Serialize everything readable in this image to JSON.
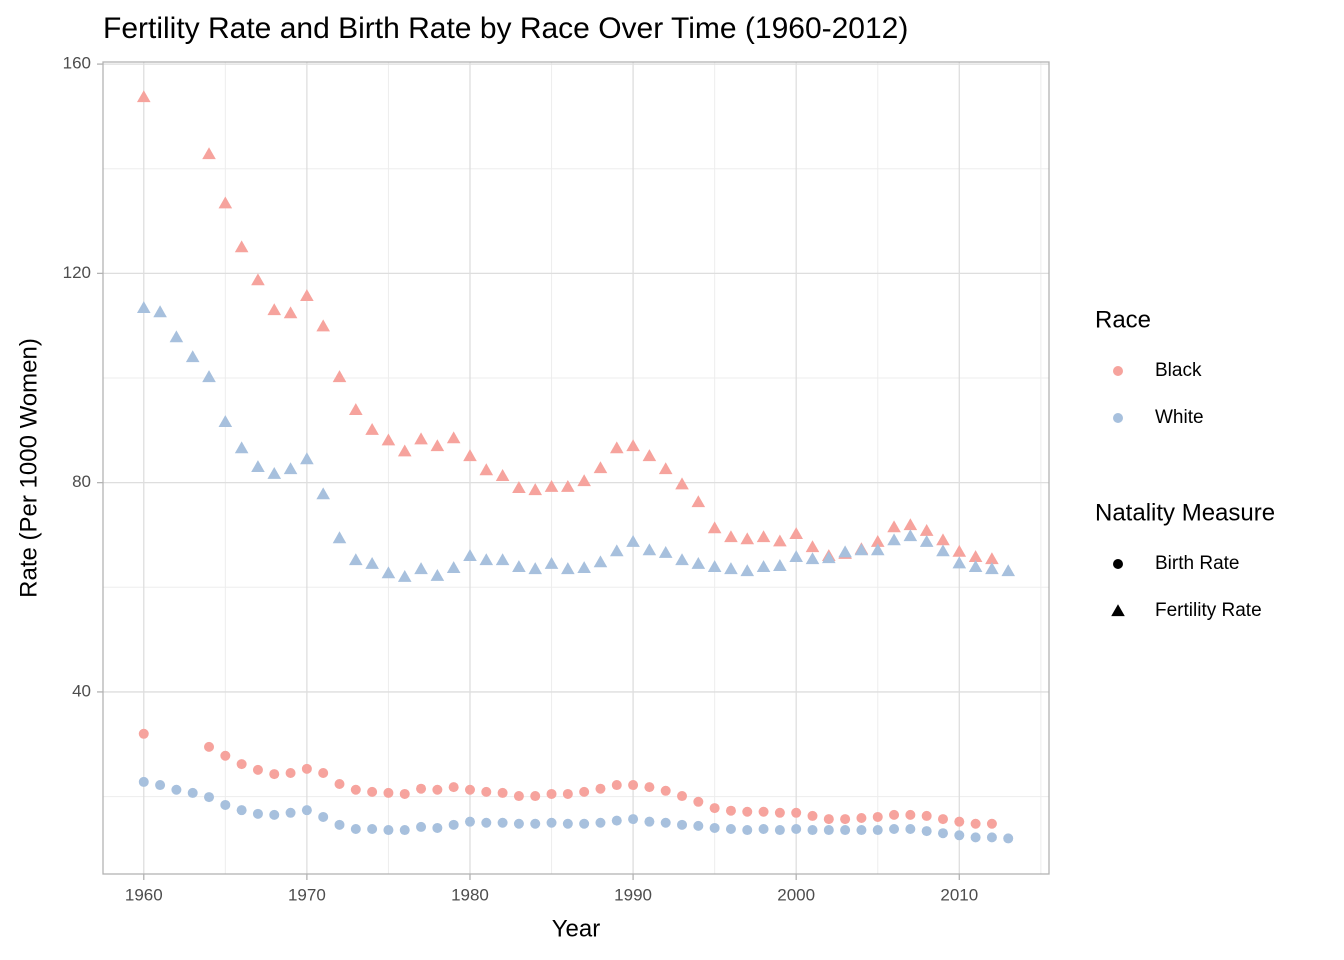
{
  "chart_data": {
    "type": "scatter",
    "title": "Fertility Rate and Birth Rate by Race Over Time (1960-2012)",
    "x_label": "Year",
    "y_label": "Rate (Per 1000 Women)",
    "xlim": [
      1957.5,
      2015.5
    ],
    "ylim": [
      5.2,
      160.4
    ],
    "xticks": [
      1960,
      1970,
      1980,
      1990,
      2000,
      2010
    ],
    "yticks": [
      40,
      80,
      120,
      160
    ],
    "grid": true,
    "legend_position": "right",
    "legends": [
      {
        "title": "Race",
        "items": [
          {
            "label": "Black",
            "color": "#f6a39d"
          },
          {
            "label": "White",
            "color": "#a7c0dd"
          }
        ]
      },
      {
        "title": "Natality Measure",
        "items": [
          {
            "label": "Birth Rate",
            "shape": "circle"
          },
          {
            "label": "Fertility Rate",
            "shape": "triangle"
          }
        ]
      }
    ],
    "series": [
      {
        "race": "Black",
        "measure": "Fertility Rate",
        "x": [
          1960,
          1964,
          1965,
          1966,
          1967,
          1968,
          1969,
          1970,
          1971,
          1972,
          1973,
          1974,
          1975,
          1976,
          1977,
          1978,
          1979,
          1980,
          1981,
          1982,
          1983,
          1984,
          1985,
          1986,
          1987,
          1988,
          1989,
          1990,
          1991,
          1992,
          1993,
          1994,
          1995,
          1996,
          1997,
          1998,
          1999,
          2000,
          2001,
          2002,
          2003,
          2004,
          2005,
          2006,
          2007,
          2008,
          2009,
          2010,
          2011,
          2012
        ],
        "values": [
          153.7,
          142.8,
          133.4,
          125.0,
          118.7,
          113.0,
          112.4,
          115.7,
          109.9,
          100.2,
          93.9,
          90.1,
          88.1,
          86.0,
          88.3,
          87.0,
          88.5,
          85.1,
          82.4,
          81.3,
          79.0,
          78.6,
          79.2,
          79.2,
          80.3,
          82.8,
          86.6,
          87.0,
          85.1,
          82.6,
          79.7,
          76.3,
          71.3,
          69.6,
          69.2,
          69.6,
          68.8,
          70.2,
          67.7,
          66.0,
          66.4,
          67.3,
          68.7,
          71.5,
          71.9,
          70.8,
          69.0,
          66.8,
          65.8,
          65.4
        ]
      },
      {
        "race": "White",
        "measure": "Fertility Rate",
        "x": [
          1960,
          1961,
          1962,
          1963,
          1964,
          1965,
          1966,
          1967,
          1968,
          1969,
          1970,
          1971,
          1972,
          1973,
          1974,
          1975,
          1976,
          1977,
          1978,
          1979,
          1980,
          1981,
          1982,
          1983,
          1984,
          1985,
          1986,
          1987,
          1988,
          1989,
          1990,
          1991,
          1992,
          1993,
          1994,
          1995,
          1996,
          1997,
          1998,
          1999,
          2000,
          2001,
          2002,
          2003,
          2004,
          2005,
          2006,
          2007,
          2008,
          2009,
          2010,
          2011,
          2012,
          2013
        ],
        "values": [
          113.4,
          112.6,
          107.8,
          104.0,
          100.2,
          91.6,
          86.6,
          83.0,
          81.7,
          82.6,
          84.5,
          77.8,
          69.4,
          65.2,
          64.5,
          62.7,
          62.0,
          63.5,
          62.2,
          63.7,
          66.0,
          65.2,
          65.2,
          63.9,
          63.5,
          64.5,
          63.5,
          63.7,
          64.8,
          66.9,
          68.7,
          67.1,
          66.6,
          65.2,
          64.5,
          63.9,
          63.5,
          63.1,
          63.9,
          64.1,
          65.8,
          65.4,
          65.6,
          66.7,
          67.1,
          67.1,
          69.0,
          69.8,
          68.7,
          66.9,
          64.6,
          63.9,
          63.5,
          63.1
        ]
      },
      {
        "race": "Black",
        "measure": "Birth Rate",
        "x": [
          1960,
          1964,
          1965,
          1966,
          1967,
          1968,
          1969,
          1970,
          1971,
          1972,
          1973,
          1974,
          1975,
          1976,
          1977,
          1978,
          1979,
          1980,
          1981,
          1982,
          1983,
          1984,
          1985,
          1986,
          1987,
          1988,
          1989,
          1990,
          1991,
          1992,
          1993,
          1994,
          1995,
          1996,
          1997,
          1998,
          1999,
          2000,
          2001,
          2002,
          2003,
          2004,
          2005,
          2006,
          2007,
          2008,
          2009,
          2010,
          2011,
          2012
        ],
        "values": [
          32.0,
          29.5,
          27.8,
          26.2,
          25.1,
          24.3,
          24.5,
          25.3,
          24.5,
          22.4,
          21.3,
          20.9,
          20.7,
          20.5,
          21.5,
          21.3,
          21.8,
          21.3,
          20.9,
          20.7,
          20.1,
          20.1,
          20.5,
          20.5,
          20.9,
          21.5,
          22.2,
          22.2,
          21.8,
          21.1,
          20.1,
          19.0,
          17.8,
          17.3,
          17.1,
          17.1,
          16.9,
          16.9,
          16.3,
          15.7,
          15.7,
          15.9,
          16.1,
          16.5,
          16.5,
          16.3,
          15.7,
          15.2,
          14.8,
          14.8
        ]
      },
      {
        "race": "White",
        "measure": "Birth Rate",
        "x": [
          1960,
          1961,
          1962,
          1963,
          1964,
          1965,
          1966,
          1967,
          1968,
          1969,
          1970,
          1971,
          1972,
          1973,
          1974,
          1975,
          1976,
          1977,
          1978,
          1979,
          1980,
          1981,
          1982,
          1983,
          1984,
          1985,
          1986,
          1987,
          1988,
          1989,
          1990,
          1991,
          1992,
          1993,
          1994,
          1995,
          1996,
          1997,
          1998,
          1999,
          2000,
          2001,
          2002,
          2003,
          2004,
          2005,
          2006,
          2007,
          2008,
          2009,
          2010,
          2011,
          2012,
          2013
        ],
        "values": [
          22.8,
          22.2,
          21.3,
          20.7,
          19.9,
          18.4,
          17.4,
          16.7,
          16.5,
          16.9,
          17.4,
          16.1,
          14.6,
          13.8,
          13.8,
          13.6,
          13.6,
          14.2,
          14.0,
          14.6,
          15.2,
          15.0,
          15.0,
          14.8,
          14.8,
          15.0,
          14.8,
          14.8,
          15.0,
          15.4,
          15.7,
          15.2,
          15.0,
          14.6,
          14.4,
          14.0,
          13.8,
          13.6,
          13.8,
          13.6,
          13.8,
          13.6,
          13.6,
          13.6,
          13.6,
          13.6,
          13.8,
          13.8,
          13.4,
          13.0,
          12.6,
          12.2,
          12.2,
          12.0
        ]
      }
    ]
  }
}
